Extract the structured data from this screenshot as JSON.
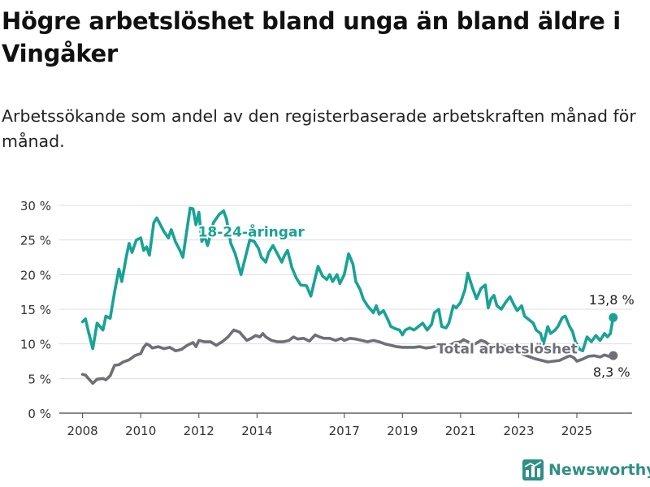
{
  "header": {
    "title": "Högre arbetslöshet bland unga än bland äldre i Vingåker",
    "subtitle": "Arbetssökande som andel av den registerbaserade arbetskraften månad för månad."
  },
  "brand": {
    "name": "Newsworthy",
    "icon": "bar-chart-logo-icon",
    "color": "#2f8f84"
  },
  "chart_data": {
    "type": "line",
    "title": "Högre arbetslöshet bland unga än bland äldre i Vingåker",
    "subtitle": "Arbetssökande som andel av den registerbaserade arbetskraften månad för månad.",
    "x_ticks": [
      2008,
      2010,
      2012,
      2014,
      2017,
      2019,
      2021,
      2023,
      2025
    ],
    "x_tick_labels": [
      "2008",
      "2010",
      "2012",
      "2014",
      "2017",
      "2019",
      "2021",
      "2023",
      "2025"
    ],
    "xlim": [
      2007.2,
      2026.9
    ],
    "y_ticks": [
      0,
      5,
      10,
      15,
      20,
      25,
      30
    ],
    "y_tick_labels": [
      "0 %",
      "5 %",
      "10 %",
      "15 %",
      "20 %",
      "25 %",
      "30 %"
    ],
    "ylim": [
      0,
      30
    ],
    "grid": true,
    "series": [
      {
        "name": "18-24-åringar",
        "color": "#18a394",
        "label_at": [
          2013.8,
          25.5
        ],
        "end_label": "13,8 %",
        "points": [
          [
            2008.0,
            13.2
          ],
          [
            2008.1,
            13.6
          ],
          [
            2008.2,
            11.8
          ],
          [
            2008.35,
            9.3
          ],
          [
            2008.5,
            13.0
          ],
          [
            2008.7,
            12.0
          ],
          [
            2008.8,
            14.0
          ],
          [
            2008.95,
            13.7
          ],
          [
            2009.1,
            17.5
          ],
          [
            2009.25,
            20.8
          ],
          [
            2009.35,
            19.0
          ],
          [
            2009.5,
            22.5
          ],
          [
            2009.6,
            24.5
          ],
          [
            2009.7,
            23.2
          ],
          [
            2009.85,
            25.0
          ],
          [
            2010.0,
            25.3
          ],
          [
            2010.1,
            23.5
          ],
          [
            2010.2,
            24.0
          ],
          [
            2010.3,
            22.8
          ],
          [
            2010.45,
            27.5
          ],
          [
            2010.55,
            28.2
          ],
          [
            2010.7,
            27.0
          ],
          [
            2010.8,
            26.2
          ],
          [
            2010.95,
            25.3
          ],
          [
            2011.05,
            26.5
          ],
          [
            2011.2,
            24.7
          ],
          [
            2011.35,
            23.5
          ],
          [
            2011.45,
            22.5
          ],
          [
            2011.6,
            26.8
          ],
          [
            2011.7,
            29.6
          ],
          [
            2011.8,
            29.5
          ],
          [
            2011.9,
            27.2
          ],
          [
            2012.0,
            29.0
          ],
          [
            2012.1,
            24.8
          ],
          [
            2012.2,
            25.5
          ],
          [
            2012.3,
            24.2
          ],
          [
            2012.4,
            25.8
          ],
          [
            2012.5,
            27.5
          ],
          [
            2012.7,
            28.7
          ],
          [
            2012.85,
            29.2
          ],
          [
            2012.95,
            28.0
          ],
          [
            2013.1,
            24.5
          ],
          [
            2013.25,
            23.0
          ],
          [
            2013.35,
            21.5
          ],
          [
            2013.45,
            20.0
          ],
          [
            2013.6,
            22.5
          ],
          [
            2013.75,
            25.0
          ],
          [
            2013.9,
            24.8
          ],
          [
            2014.05,
            23.8
          ],
          [
            2014.15,
            22.5
          ],
          [
            2014.3,
            21.8
          ],
          [
            2014.4,
            23.2
          ],
          [
            2014.55,
            24.2
          ],
          [
            2014.7,
            23.0
          ],
          [
            2014.85,
            21.8
          ],
          [
            2014.95,
            22.8
          ],
          [
            2015.05,
            23.5
          ],
          [
            2015.2,
            21.0
          ],
          [
            2015.35,
            19.5
          ],
          [
            2015.5,
            18.5
          ],
          [
            2015.7,
            18.4
          ],
          [
            2015.85,
            16.9
          ],
          [
            2016.0,
            19.5
          ],
          [
            2016.1,
            21.2
          ],
          [
            2016.25,
            19.8
          ],
          [
            2016.4,
            19.3
          ],
          [
            2016.5,
            20.0
          ],
          [
            2016.6,
            19.0
          ],
          [
            2016.75,
            20.0
          ],
          [
            2016.85,
            18.7
          ],
          [
            2017.0,
            20.0
          ],
          [
            2017.15,
            23.0
          ],
          [
            2017.3,
            21.5
          ],
          [
            2017.4,
            19.0
          ],
          [
            2017.55,
            17.8
          ],
          [
            2017.65,
            16.5
          ],
          [
            2017.8,
            15.5
          ],
          [
            2017.9,
            15.0
          ],
          [
            2018.0,
            14.5
          ],
          [
            2018.1,
            15.5
          ],
          [
            2018.2,
            14.3
          ],
          [
            2018.35,
            14.8
          ],
          [
            2018.5,
            13.5
          ],
          [
            2018.6,
            12.5
          ],
          [
            2018.75,
            12.2
          ],
          [
            2018.9,
            12.0
          ],
          [
            2019.0,
            11.3
          ],
          [
            2019.1,
            12.0
          ],
          [
            2019.25,
            12.3
          ],
          [
            2019.4,
            12.0
          ],
          [
            2019.55,
            12.5
          ],
          [
            2019.7,
            13.0
          ],
          [
            2019.85,
            12.0
          ],
          [
            2020.0,
            12.8
          ],
          [
            2020.1,
            14.5
          ],
          [
            2020.25,
            15.0
          ],
          [
            2020.35,
            12.5
          ],
          [
            2020.5,
            12.3
          ],
          [
            2020.6,
            13.0
          ],
          [
            2020.75,
            15.5
          ],
          [
            2020.85,
            15.2
          ],
          [
            2021.0,
            16.0
          ],
          [
            2021.15,
            17.8
          ],
          [
            2021.25,
            20.2
          ],
          [
            2021.4,
            18.2
          ],
          [
            2021.55,
            16.5
          ],
          [
            2021.7,
            18.0
          ],
          [
            2021.85,
            18.5
          ],
          [
            2021.95,
            15.2
          ],
          [
            2022.05,
            16.5
          ],
          [
            2022.15,
            17.0
          ],
          [
            2022.25,
            15.5
          ],
          [
            2022.4,
            15.0
          ],
          [
            2022.55,
            16.0
          ],
          [
            2022.7,
            16.8
          ],
          [
            2022.85,
            15.5
          ],
          [
            2022.95,
            14.8
          ],
          [
            2023.1,
            15.5
          ],
          [
            2023.2,
            14.0
          ],
          [
            2023.35,
            13.5
          ],
          [
            2023.5,
            13.0
          ],
          [
            2023.6,
            12.0
          ],
          [
            2023.75,
            11.5
          ],
          [
            2023.85,
            10.0
          ],
          [
            2024.0,
            12.5
          ],
          [
            2024.1,
            11.5
          ],
          [
            2024.25,
            12.0
          ],
          [
            2024.35,
            12.5
          ],
          [
            2024.5,
            13.8
          ],
          [
            2024.6,
            14.0
          ],
          [
            2024.75,
            12.5
          ],
          [
            2024.85,
            11.8
          ],
          [
            2024.95,
            10.3
          ],
          [
            2025.1,
            9.2
          ],
          [
            2025.2,
            9.0
          ],
          [
            2025.35,
            11.0
          ],
          [
            2025.5,
            10.3
          ],
          [
            2025.65,
            11.2
          ],
          [
            2025.8,
            10.5
          ],
          [
            2025.95,
            11.5
          ],
          [
            2026.05,
            11.0
          ],
          [
            2026.15,
            11.5
          ],
          [
            2026.25,
            13.8
          ]
        ]
      },
      {
        "name": "Total arbetslöshet",
        "color": "#6f6f78",
        "label_at": [
          2022.6,
          8.6
        ],
        "end_label": "8,3 %",
        "points": [
          [
            2008.0,
            5.6
          ],
          [
            2008.1,
            5.5
          ],
          [
            2008.2,
            5.0
          ],
          [
            2008.35,
            4.3
          ],
          [
            2008.5,
            4.9
          ],
          [
            2008.7,
            5.0
          ],
          [
            2008.8,
            4.8
          ],
          [
            2008.95,
            5.4
          ],
          [
            2009.1,
            6.9
          ],
          [
            2009.25,
            7.0
          ],
          [
            2009.4,
            7.4
          ],
          [
            2009.6,
            7.7
          ],
          [
            2009.8,
            8.3
          ],
          [
            2010.0,
            8.6
          ],
          [
            2010.1,
            9.5
          ],
          [
            2010.2,
            10.0
          ],
          [
            2010.3,
            9.8
          ],
          [
            2010.4,
            9.4
          ],
          [
            2010.6,
            9.6
          ],
          [
            2010.8,
            9.3
          ],
          [
            2011.0,
            9.5
          ],
          [
            2011.2,
            9.0
          ],
          [
            2011.4,
            9.2
          ],
          [
            2011.6,
            9.8
          ],
          [
            2011.8,
            10.2
          ],
          [
            2011.9,
            9.6
          ],
          [
            2012.0,
            10.5
          ],
          [
            2012.2,
            10.3
          ],
          [
            2012.4,
            10.3
          ],
          [
            2012.6,
            9.8
          ],
          [
            2012.8,
            10.3
          ],
          [
            2013.0,
            11.0
          ],
          [
            2013.1,
            11.5
          ],
          [
            2013.2,
            12.0
          ],
          [
            2013.4,
            11.7
          ],
          [
            2013.5,
            11.2
          ],
          [
            2013.65,
            10.5
          ],
          [
            2013.8,
            10.8
          ],
          [
            2013.95,
            11.2
          ],
          [
            2014.1,
            11.0
          ],
          [
            2014.2,
            11.5
          ],
          [
            2014.3,
            11.0
          ],
          [
            2014.5,
            10.5
          ],
          [
            2014.7,
            10.3
          ],
          [
            2014.9,
            10.3
          ],
          [
            2015.1,
            10.5
          ],
          [
            2015.25,
            11.0
          ],
          [
            2015.4,
            10.7
          ],
          [
            2015.6,
            10.8
          ],
          [
            2015.8,
            10.4
          ],
          [
            2016.0,
            11.3
          ],
          [
            2016.15,
            11.0
          ],
          [
            2016.3,
            10.8
          ],
          [
            2016.5,
            10.8
          ],
          [
            2016.7,
            10.5
          ],
          [
            2016.9,
            10.8
          ],
          [
            2017.0,
            10.5
          ],
          [
            2017.2,
            10.8
          ],
          [
            2017.4,
            10.7
          ],
          [
            2017.6,
            10.5
          ],
          [
            2017.8,
            10.3
          ],
          [
            2018.0,
            10.5
          ],
          [
            2018.2,
            10.3
          ],
          [
            2018.4,
            10.0
          ],
          [
            2018.6,
            9.8
          ],
          [
            2018.8,
            9.6
          ],
          [
            2019.0,
            9.5
          ],
          [
            2019.2,
            9.5
          ],
          [
            2019.4,
            9.5
          ],
          [
            2019.6,
            9.6
          ],
          [
            2019.8,
            9.4
          ],
          [
            2020.0,
            9.5
          ],
          [
            2020.2,
            9.7
          ],
          [
            2020.4,
            9.8
          ],
          [
            2020.6,
            9.7
          ],
          [
            2020.8,
            10.2
          ],
          [
            2021.0,
            10.3
          ],
          [
            2021.1,
            10.6
          ],
          [
            2021.3,
            10.2
          ],
          [
            2021.5,
            10.0
          ],
          [
            2021.7,
            10.5
          ],
          [
            2021.85,
            10.3
          ],
          [
            2022.0,
            9.8
          ],
          [
            2022.2,
            9.5
          ],
          [
            2022.4,
            9.8
          ],
          [
            2022.6,
            9.6
          ],
          [
            2022.8,
            9.2
          ],
          [
            2023.0,
            8.8
          ],
          [
            2023.2,
            8.4
          ],
          [
            2023.4,
            8.1
          ],
          [
            2023.6,
            7.8
          ],
          [
            2023.8,
            7.6
          ],
          [
            2024.0,
            7.4
          ],
          [
            2024.2,
            7.5
          ],
          [
            2024.4,
            7.6
          ],
          [
            2024.6,
            8.0
          ],
          [
            2024.75,
            8.3
          ],
          [
            2024.9,
            8.0
          ],
          [
            2025.0,
            7.5
          ],
          [
            2025.2,
            7.8
          ],
          [
            2025.4,
            8.2
          ],
          [
            2025.6,
            8.3
          ],
          [
            2025.8,
            8.1
          ],
          [
            2025.95,
            8.4
          ],
          [
            2026.1,
            8.2
          ],
          [
            2026.25,
            8.3
          ]
        ]
      }
    ]
  }
}
